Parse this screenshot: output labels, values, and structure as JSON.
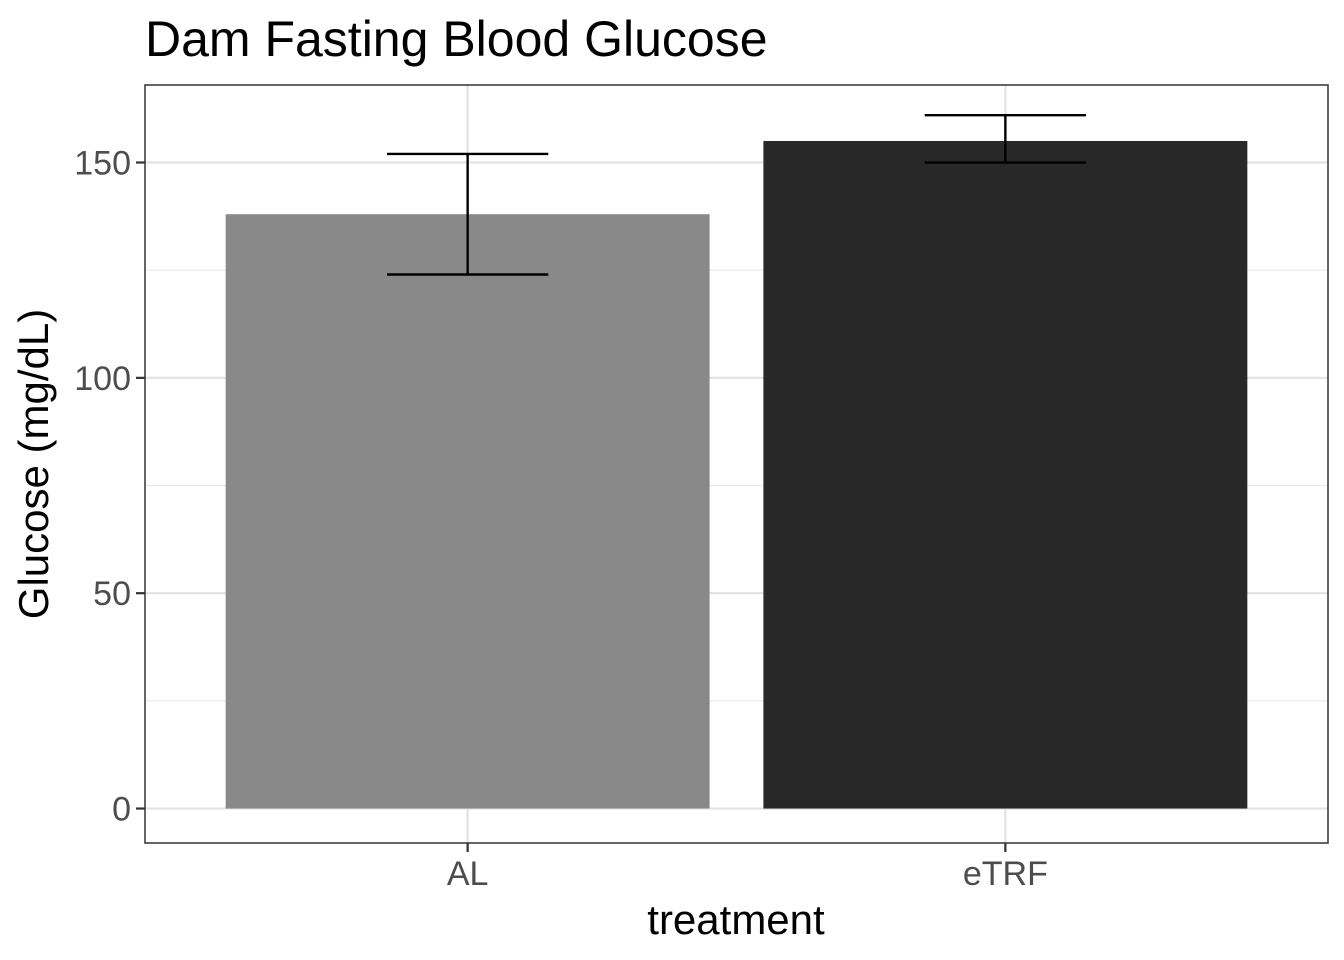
{
  "chart_data": {
    "type": "bar",
    "title": "Dam Fasting Blood Glucose",
    "xlabel": "treatment",
    "ylabel": "Glucose (mg/dL)",
    "categories": [
      "AL",
      "eTRF"
    ],
    "values": [
      138,
      155
    ],
    "error_low": [
      124,
      150
    ],
    "error_high": [
      152,
      161
    ],
    "bar_colors": [
      "#898989",
      "#282828"
    ],
    "ylim": [
      -8,
      168
    ],
    "yticks": [
      0,
      50,
      100,
      150
    ],
    "ytick_labels": [
      "0",
      "50",
      "100",
      "150"
    ],
    "grid": true,
    "legend": "none"
  }
}
